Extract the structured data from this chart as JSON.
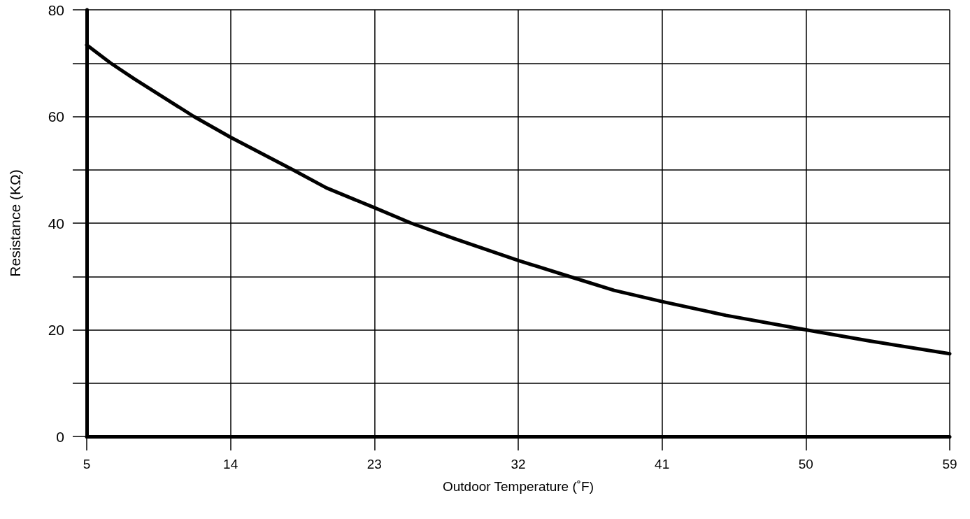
{
  "chart_data": {
    "type": "line",
    "xlabel": "Outdoor Temperature (˚F)",
    "ylabel": "Resistance (KΩ)",
    "x": [
      5,
      6.5,
      8,
      11.7,
      14,
      17.9,
      20,
      23,
      25.3,
      28,
      32,
      35.2,
      38,
      41,
      45,
      50,
      54,
      59
    ],
    "series": [
      {
        "color": "#000000",
        "values": [
          73.4,
          70,
          67,
          60,
          56.1,
          50,
          46.6,
          42.9,
          40,
          37.1,
          33,
          30,
          27.4,
          25.3,
          22.7,
          20,
          17.9,
          15.5
        ]
      }
    ],
    "xlim": [
      5,
      59
    ],
    "ylim": [
      0,
      80
    ],
    "xticks": [
      5,
      14,
      23,
      32,
      41,
      50,
      59
    ],
    "yticks": [
      0,
      {
        "value": 10,
        "label": null
      },
      20,
      {
        "value": 30,
        "label": null
      },
      40,
      {
        "value": 50,
        "label": null
      },
      60,
      {
        "value": 70,
        "label": null
      },
      80
    ],
    "grid": true,
    "line_style": "solid"
  }
}
